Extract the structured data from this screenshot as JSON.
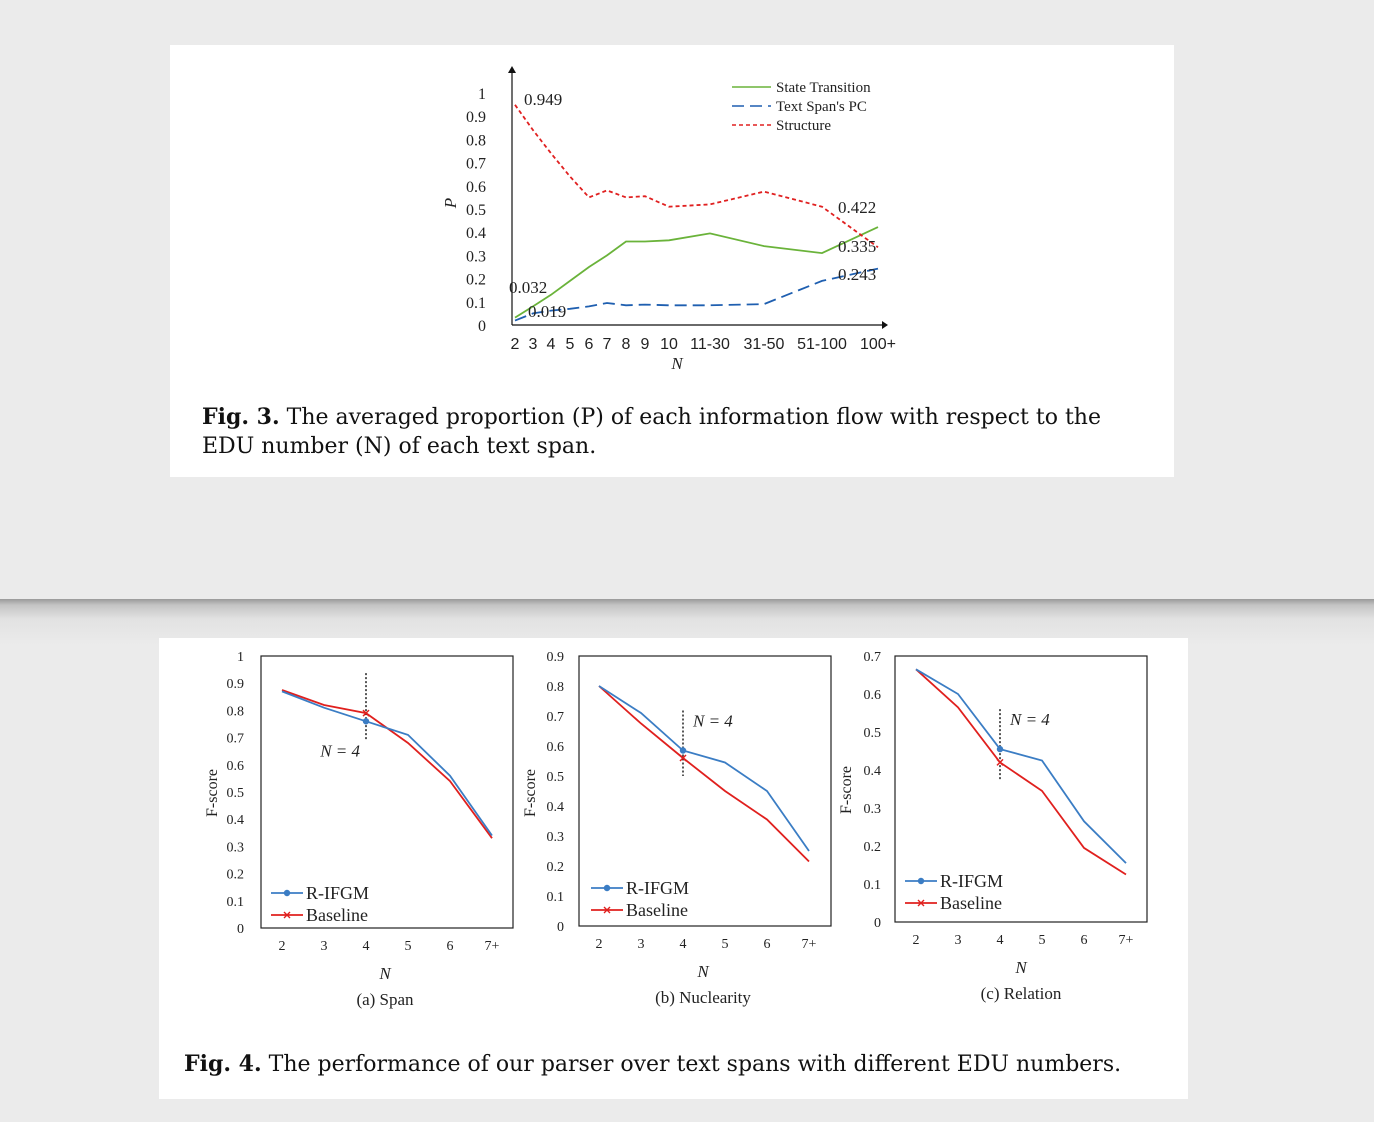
{
  "fig3": {
    "caption_label": "Fig. 3.",
    "caption_text": " The averaged proportion (P) of each information flow with respect to the EDU number (N) of each text span.",
    "chart_data": {
      "type": "line",
      "categories": [
        "2",
        "3",
        "4",
        "5",
        "6",
        "7",
        "8",
        "9",
        "10",
        "11-30",
        "31-50",
        "51-100",
        "100+"
      ],
      "xlabel": "N",
      "ylabel": "P",
      "ylim": [
        0,
        1
      ],
      "yticks": [
        "0",
        "0.1",
        "0.2",
        "0.3",
        "0.4",
        "0.5",
        "0.6",
        "0.7",
        "0.8",
        "0.9",
        "1"
      ],
      "legend_position": "top-right",
      "series": [
        {
          "name": "State Transition",
          "color": "#6ab33a",
          "dash": "solid",
          "values": [
            0.032,
            0.08,
            0.13,
            0.19,
            0.25,
            0.3,
            0.36,
            0.36,
            0.365,
            0.395,
            0.34,
            0.31,
            0.422
          ]
        },
        {
          "name": "Text Span's PC",
          "color": "#1f5fb0",
          "dash": "dashed",
          "values": [
            0.019,
            0.05,
            0.062,
            0.07,
            0.08,
            0.095,
            0.085,
            0.088,
            0.085,
            0.085,
            0.09,
            0.19,
            0.243
          ]
        },
        {
          "name": "Structure",
          "color": "#e02020",
          "dash": "dotted",
          "values": [
            0.949,
            0.84,
            0.74,
            0.64,
            0.55,
            0.58,
            0.55,
            0.555,
            0.51,
            0.52,
            0.575,
            0.51,
            0.335
          ]
        }
      ],
      "annotations": [
        "0.949",
        "0.032",
        "0.019",
        "0.422",
        "0.335",
        "0.243"
      ]
    }
  },
  "fig4": {
    "caption_label": "Fig. 4.",
    "caption_text": " The performance of our parser over text spans with different EDU numbers.",
    "chart_data": [
      {
        "type": "line",
        "subtitle": "(a) Span",
        "categories": [
          "2",
          "3",
          "4",
          "5",
          "6",
          "7+"
        ],
        "xlabel": "N",
        "ylabel": "F-score",
        "ylim": [
          0,
          1
        ],
        "yticks": [
          "0",
          "0.1",
          "0.2",
          "0.3",
          "0.4",
          "0.5",
          "0.6",
          "0.7",
          "0.8",
          "0.9",
          "1"
        ],
        "marker_label": "N = 4",
        "marker_category": "4",
        "series": [
          {
            "name": "R-IFGM",
            "color": "#3b7dc4",
            "values": [
              0.87,
              0.81,
              0.76,
              0.71,
              0.56,
              0.34
            ]
          },
          {
            "name": "Baseline",
            "color": "#e0201e",
            "values": [
              0.875,
              0.82,
              0.79,
              0.68,
              0.54,
              0.33
            ]
          }
        ]
      },
      {
        "type": "line",
        "subtitle": "(b) Nuclearity",
        "categories": [
          "2",
          "3",
          "4",
          "5",
          "6",
          "7+"
        ],
        "xlabel": "N",
        "ylabel": "F-score",
        "ylim": [
          0,
          0.9
        ],
        "yticks": [
          "0",
          "0.1",
          "0.2",
          "0.3",
          "0.4",
          "0.5",
          "0.6",
          "0.7",
          "0.8",
          "0.9"
        ],
        "marker_label": "N = 4",
        "marker_category": "4",
        "series": [
          {
            "name": "R-IFGM",
            "color": "#3b7dc4",
            "values": [
              0.8,
              0.71,
              0.585,
              0.545,
              0.45,
              0.25
            ]
          },
          {
            "name": "Baseline",
            "color": "#e0201e",
            "values": [
              0.8,
              0.675,
              0.56,
              0.45,
              0.355,
              0.215
            ]
          }
        ]
      },
      {
        "type": "line",
        "subtitle": "(c) Relation",
        "categories": [
          "2",
          "3",
          "4",
          "5",
          "6",
          "7+"
        ],
        "xlabel": "N",
        "ylabel": "F-score",
        "ylim": [
          0,
          0.7
        ],
        "yticks": [
          "0",
          "0.1",
          "0.2",
          "0.3",
          "0.4",
          "0.5",
          "0.6",
          "0.7"
        ],
        "marker_label": "N = 4",
        "marker_category": "4",
        "series": [
          {
            "name": "R-IFGM",
            "color": "#3b7dc4",
            "values": [
              0.665,
              0.6,
              0.455,
              0.425,
              0.265,
              0.155
            ]
          },
          {
            "name": "Baseline",
            "color": "#e0201e",
            "values": [
              0.665,
              0.565,
              0.42,
              0.345,
              0.195,
              0.125
            ]
          }
        ]
      }
    ]
  }
}
